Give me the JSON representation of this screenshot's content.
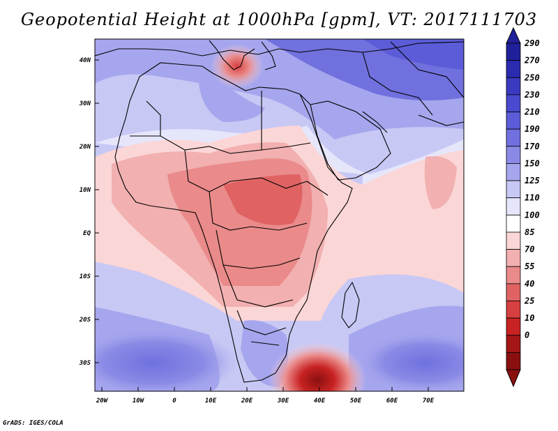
{
  "title": "Geopotential Height at 1000hPa [gpm], VT: 2017111703",
  "footer": "GrADS: IGES/COLA",
  "map": {
    "lat_labels": [
      "40N",
      "30N",
      "20N",
      "10N",
      "EQ",
      "10S",
      "20S",
      "30S"
    ],
    "lon_labels": [
      "20W",
      "10W",
      "0",
      "10E",
      "20E",
      "30E",
      "40E",
      "50E",
      "60E",
      "70E"
    ]
  },
  "colorbar": {
    "levels": [
      "290",
      "270",
      "250",
      "230",
      "210",
      "190",
      "170",
      "150",
      "125",
      "110",
      "100",
      "85",
      "70",
      "55",
      "40",
      "25",
      "10",
      "0"
    ],
    "colors": [
      "#20209a",
      "#2b2baf",
      "#3a3ac0",
      "#4a4ad0",
      "#5c5cd8",
      "#7070de",
      "#8a8ae6",
      "#a6a6ee",
      "#c8c8f5",
      "#e6e6fb",
      "#ffffff",
      "#fbd6d6",
      "#f2b0b0",
      "#ea8a8a",
      "#e06262",
      "#d64040",
      "#c82222",
      "#a51616",
      "#8a1010"
    ]
  },
  "highs_lows": [
    {
      "label": "Low, Mediterranean",
      "color": "#e06262"
    },
    {
      "label": "Low, south of Madagascar",
      "color": "#a51616"
    }
  ]
}
